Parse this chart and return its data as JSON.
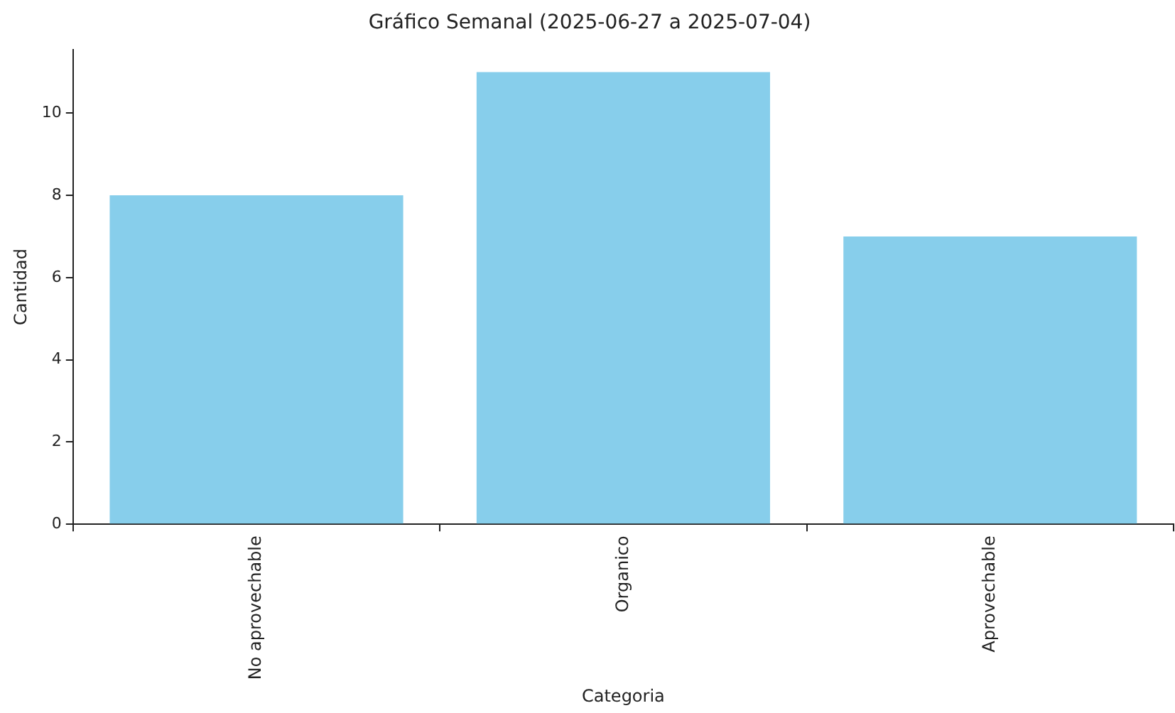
{
  "chart_data": {
    "type": "bar",
    "title": "Gráfico Semanal (2025-06-27 a 2025-07-04)",
    "xlabel": "Categoria",
    "ylabel": "Cantidad",
    "categories": [
      "No aprovechable",
      "Organico",
      "Aprovechable"
    ],
    "values": [
      8,
      11,
      7
    ],
    "color": "#87ceeb",
    "ylim": [
      0,
      11.55
    ],
    "yticks": [
      0,
      2,
      4,
      6,
      8,
      10
    ],
    "grid": false,
    "legend": false
  }
}
